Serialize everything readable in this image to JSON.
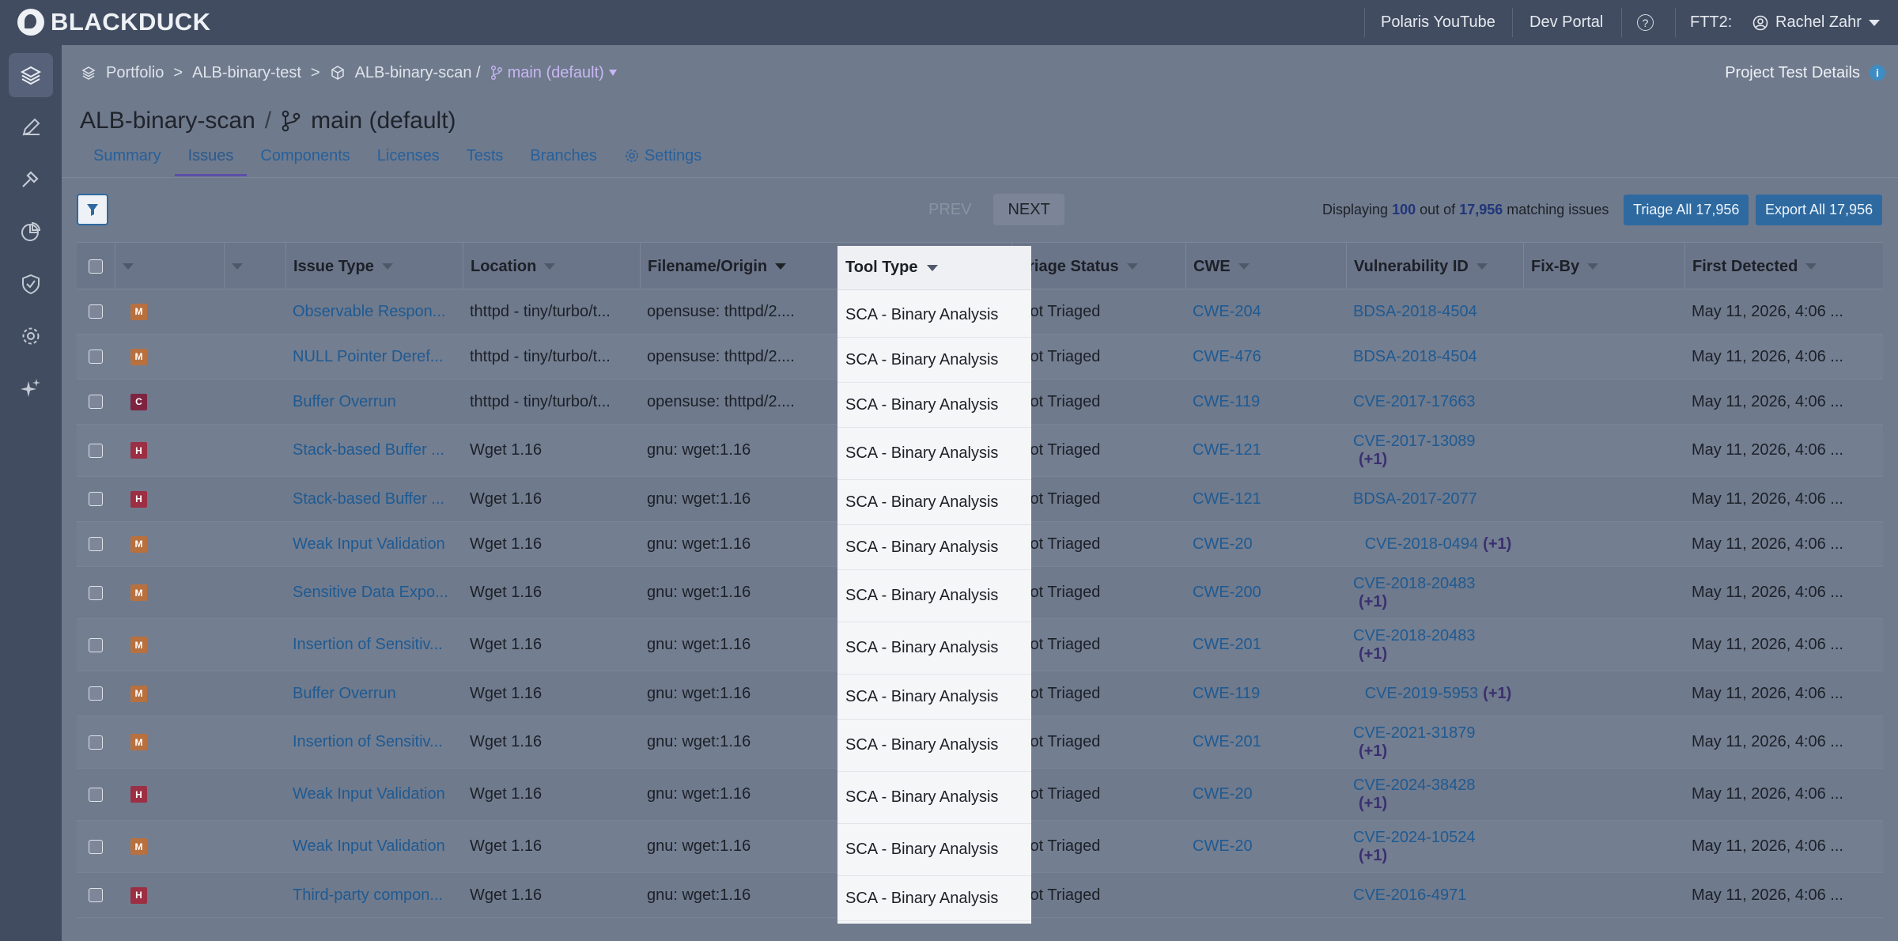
{
  "topbar": {
    "brand": "BLACKDUCK",
    "links": [
      "Polaris YouTube",
      "Dev Portal"
    ],
    "help": "?",
    "tenant": "FTT2:",
    "user": "Rachel Zahr"
  },
  "sidebar": {
    "items": [
      "layers-icon",
      "pencil-icon",
      "hammer-icon",
      "pie-chart-icon",
      "shield-icon",
      "gear-icon",
      "sparkle-icon"
    ]
  },
  "breadcrumb": {
    "portfolio": "Portfolio",
    "sep1": ">",
    "project": "ALB-binary-test",
    "sep2": ">",
    "app": "ALB-binary-scan /",
    "branch": "main (default)"
  },
  "project_details": "Project Test Details",
  "page": {
    "title": "ALB-binary-scan",
    "title_sep": "/",
    "branch": "main (default)"
  },
  "tabs": [
    {
      "label": "Summary"
    },
    {
      "label": "Issues"
    },
    {
      "label": "Components"
    },
    {
      "label": "Licenses"
    },
    {
      "label": "Tests"
    },
    {
      "label": "Branches"
    },
    {
      "label": "Settings"
    }
  ],
  "toolbar": {
    "prev": "PREV",
    "next": "NEXT",
    "displaying_pre": "Displaying",
    "shown": "100",
    "out_of": "out of",
    "total": "17,956",
    "matching": "matching issues",
    "triage_all": "Triage All 17,956",
    "export_all": "Export All 17,956"
  },
  "table": {
    "headers": [
      "Issue Type",
      "Location",
      "Filename/Origin",
      "Tool Type",
      "Triage Status",
      "CWE",
      "Vulnerability ID",
      "Fix-By",
      "First Detected"
    ],
    "rows": [
      {
        "sev": "M",
        "issue": "Observable Respon...",
        "location": "thttpd - tiny/turbo/t...",
        "origin": "opensuse: thttpd/2....",
        "tool": "SCA - Binary Analysis",
        "triage": "Not Triaged",
        "cwe": "CWE-204",
        "vuln": "BDSA-2018-4504",
        "plus": "",
        "detected": "May 11, 2026, 4:06 ..."
      },
      {
        "sev": "M",
        "issue": "NULL Pointer Deref...",
        "location": "thttpd - tiny/turbo/t...",
        "origin": "opensuse: thttpd/2....",
        "tool": "SCA - Binary Analysis",
        "triage": "Not Triaged",
        "cwe": "CWE-476",
        "vuln": "BDSA-2018-4504",
        "plus": "",
        "detected": "May 11, 2026, 4:06 ..."
      },
      {
        "sev": "C",
        "issue": "Buffer Overrun",
        "location": "thttpd - tiny/turbo/t...",
        "origin": "opensuse: thttpd/2....",
        "tool": "SCA - Binary Analysis",
        "triage": "Not Triaged",
        "cwe": "CWE-119",
        "vuln": "CVE-2017-17663",
        "plus": "",
        "detected": "May 11, 2026, 4:06 ..."
      },
      {
        "sev": "H",
        "issue": "Stack-based Buffer ...",
        "location": "Wget 1.16",
        "origin": "gnu: wget:1.16",
        "tool": "SCA - Binary Analysis",
        "triage": "Not Triaged",
        "cwe": "CWE-121",
        "vuln": "CVE-2017-13089",
        "plus": "(+1)",
        "detected": "May 11, 2026, 4:06 ..."
      },
      {
        "sev": "H",
        "issue": "Stack-based Buffer ...",
        "location": "Wget 1.16",
        "origin": "gnu: wget:1.16",
        "tool": "SCA - Binary Analysis",
        "triage": "Not Triaged",
        "cwe": "CWE-121",
        "vuln": "BDSA-2017-2077",
        "plus": "",
        "detected": "May 11, 2026, 4:06 ..."
      },
      {
        "sev": "M",
        "issue": "Weak Input Validation",
        "location": "Wget 1.16",
        "origin": "gnu: wget:1.16",
        "tool": "SCA - Binary Analysis",
        "triage": "Not Triaged",
        "cwe": "CWE-20",
        "vuln": "CVE-2018-0494",
        "plus": "(+1)",
        "detected": "May 11, 2026, 4:06 ..."
      },
      {
        "sev": "M",
        "issue": "Sensitive Data Expo...",
        "location": "Wget 1.16",
        "origin": "gnu: wget:1.16",
        "tool": "SCA - Binary Analysis",
        "triage": "Not Triaged",
        "cwe": "CWE-200",
        "vuln": "CVE-2018-20483",
        "plus": "(+1)",
        "detected": "May 11, 2026, 4:06 ..."
      },
      {
        "sev": "M",
        "issue": "Insertion of Sensitiv...",
        "location": "Wget 1.16",
        "origin": "gnu: wget:1.16",
        "tool": "SCA - Binary Analysis",
        "triage": "Not Triaged",
        "cwe": "CWE-201",
        "vuln": "CVE-2018-20483",
        "plus": "(+1)",
        "detected": "May 11, 2026, 4:06 ..."
      },
      {
        "sev": "M",
        "issue": "Buffer Overrun",
        "location": "Wget 1.16",
        "origin": "gnu: wget:1.16",
        "tool": "SCA - Binary Analysis",
        "triage": "Not Triaged",
        "cwe": "CWE-119",
        "vuln": "CVE-2019-5953",
        "plus": "(+1)",
        "detected": "May 11, 2026, 4:06 ..."
      },
      {
        "sev": "M",
        "issue": "Insertion of Sensitiv...",
        "location": "Wget 1.16",
        "origin": "gnu: wget:1.16",
        "tool": "SCA - Binary Analysis",
        "triage": "Not Triaged",
        "cwe": "CWE-201",
        "vuln": "CVE-2021-31879",
        "plus": "(+1)",
        "detected": "May 11, 2026, 4:06 ..."
      },
      {
        "sev": "H",
        "issue": "Weak Input Validation",
        "location": "Wget 1.16",
        "origin": "gnu: wget:1.16",
        "tool": "SCA - Binary Analysis",
        "triage": "Not Triaged",
        "cwe": "CWE-20",
        "vuln": "CVE-2024-38428",
        "plus": "(+1)",
        "detected": "May 11, 2026, 4:06 ..."
      },
      {
        "sev": "M",
        "issue": "Weak Input Validation",
        "location": "Wget 1.16",
        "origin": "gnu: wget:1.16",
        "tool": "SCA - Binary Analysis",
        "triage": "Not Triaged",
        "cwe": "CWE-20",
        "vuln": "CVE-2024-10524",
        "plus": "(+1)",
        "detected": "May 11, 2026, 4:06 ..."
      },
      {
        "sev": "H",
        "issue": "Third-party compon...",
        "location": "Wget 1.16",
        "origin": "gnu: wget:1.16",
        "tool": "SCA - Binary Analysis",
        "triage": "Not Triaged",
        "cwe": "",
        "vuln": "CVE-2016-4971",
        "plus": "",
        "detected": "May 11, 2026, 4:06 ..."
      }
    ]
  }
}
